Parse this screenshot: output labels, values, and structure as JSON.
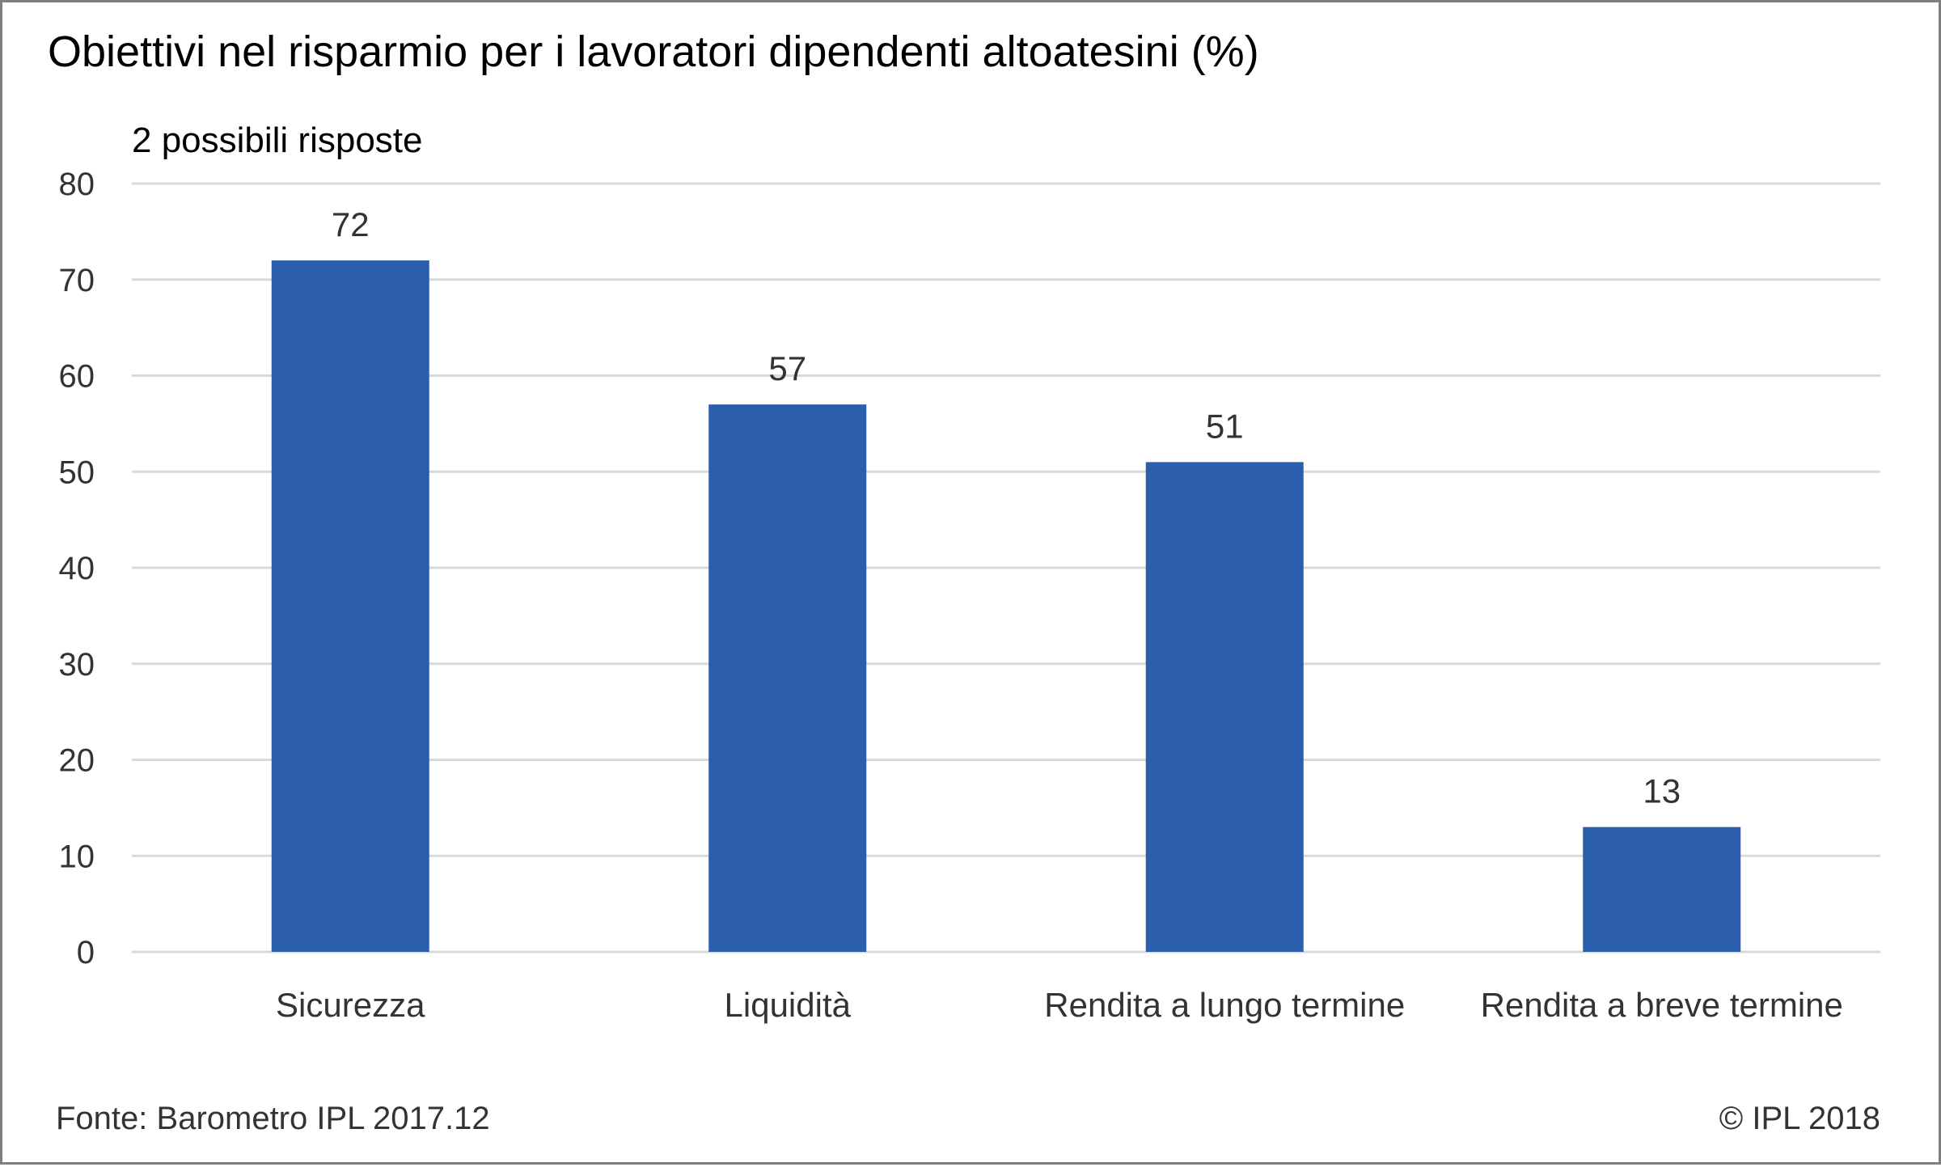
{
  "chart_data": {
    "type": "bar",
    "title": "Obiettivi nel risparmio per i lavoratori dipendenti altoatesini (%)",
    "subtitle": "2 possibili risposte",
    "categories": [
      "Sicurezza",
      "Liquidità",
      "Rendita a lungo termine",
      "Rendita a breve termine"
    ],
    "values": [
      72,
      57,
      51,
      13
    ],
    "data_labels": [
      "72",
      "57",
      "51",
      "13"
    ],
    "ylim": [
      0,
      80
    ],
    "yticks": [
      0,
      10,
      20,
      30,
      40,
      50,
      60,
      70,
      80
    ],
    "xlabel": "",
    "ylabel": "",
    "grid": true,
    "legend": "none",
    "bar_color": "#2b5ead"
  },
  "footer": {
    "source": "Fonte: Barometro IPL 2017.12",
    "copyright": "© IPL 2018"
  }
}
